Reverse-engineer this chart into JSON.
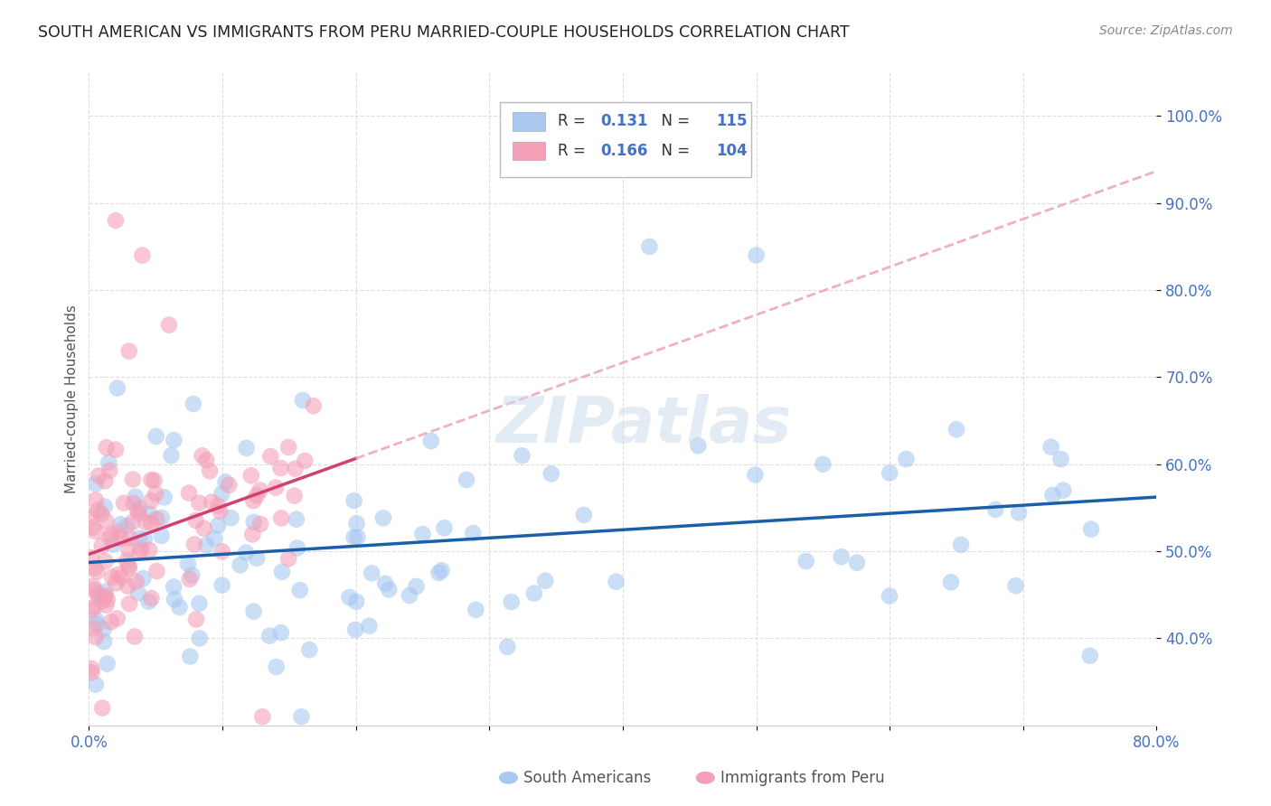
{
  "title": "SOUTH AMERICAN VS IMMIGRANTS FROM PERU MARRIED-COUPLE HOUSEHOLDS CORRELATION CHART",
  "source": "Source: ZipAtlas.com",
  "xmin": 0.0,
  "xmax": 0.8,
  "ymin": 0.3,
  "ymax": 1.05,
  "blue_color": "#A8C8F0",
  "pink_color": "#F4A0B8",
  "blue_line_color": "#1A5FA8",
  "pink_line_color": "#D04070",
  "pink_dashed_color": "#F0B0C0",
  "legend_R_blue": "0.131",
  "legend_N_blue": "115",
  "legend_R_pink": "0.166",
  "legend_N_pink": "104",
  "label_blue": "South Americans",
  "label_pink": "Immigrants from Peru",
  "watermark": "ZIPatlas",
  "title_color": "#222222",
  "source_color": "#888888",
  "tick_color": "#4472C4",
  "ylabel_color": "#555555",
  "grid_color": "#DDDDDD",
  "legend_text_color": "#333333",
  "legend_value_color": "#4472C4",
  "bottom_label_color": "#555555"
}
